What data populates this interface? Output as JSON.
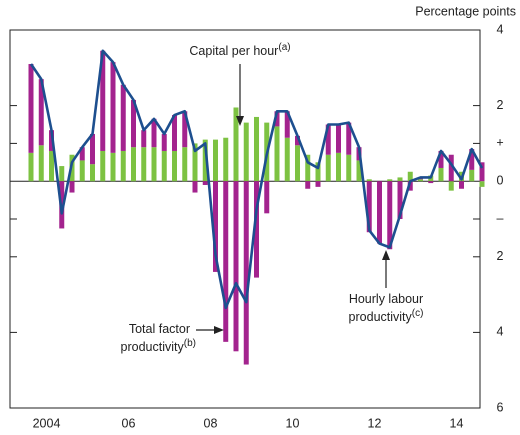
{
  "chart_data": {
    "type": "bar",
    "unit_label": "Percentage points",
    "categories": [
      null,
      null,
      "2004",
      null,
      null,
      null,
      null,
      null,
      null,
      null,
      "06",
      null,
      null,
      null,
      null,
      null,
      null,
      null,
      "08",
      null,
      null,
      null,
      null,
      null,
      null,
      null,
      "10",
      null,
      null,
      null,
      null,
      null,
      null,
      null,
      "12",
      null,
      null,
      null,
      null,
      null,
      null,
      null,
      "14",
      null,
      null
    ],
    "series": [
      {
        "name": "Capital per hour",
        "type": "bar",
        "color": "#7dc242",
        "values": [
          0.75,
          0.95,
          0.8,
          0.4,
          0.7,
          0.55,
          0.45,
          0.8,
          0.75,
          0.8,
          0.9,
          0.9,
          0.9,
          0.8,
          0.8,
          0.9,
          1.0,
          1.1,
          1.1,
          1.15,
          1.95,
          1.55,
          1.7,
          1.55,
          1.45,
          1.15,
          0.95,
          0.7,
          0.5,
          0.7,
          0.75,
          0.7,
          0.55,
          0.05,
          0,
          0.05,
          0.1,
          0.25,
          0.05,
          0.15,
          0.35,
          -0.25,
          0.25,
          0.3,
          -0.15
        ]
      },
      {
        "name": "Total factor productivity",
        "type": "bar",
        "color": "#a3238e",
        "values": [
          2.35,
          1.75,
          0.55,
          -1.25,
          -0.3,
          0.35,
          0.8,
          2.65,
          2.4,
          1.75,
          1.25,
          0.45,
          0.75,
          0.45,
          0.95,
          0.95,
          -0.3,
          -0.1,
          -2.4,
          -4.25,
          -4.5,
          -4.85,
          -2.55,
          -0.85,
          0.4,
          0.7,
          0.25,
          -0.2,
          -0.15,
          0.8,
          0.75,
          0.85,
          0.35,
          -1.35,
          -1.65,
          -1.8,
          -1.0,
          -0.25,
          0.05,
          -0.05,
          0.45,
          0.7,
          -0.2,
          0.55,
          0.5
        ]
      },
      {
        "name": "Hourly labour productivity",
        "type": "line",
        "color": "#1d4f8f",
        "values": [
          3.1,
          2.7,
          1.35,
          -0.85,
          0.5,
          0.9,
          1.25,
          3.45,
          3.15,
          2.55,
          2.15,
          1.35,
          1.65,
          1.25,
          1.75,
          1.85,
          0.8,
          1.0,
          -1.95,
          -3.35,
          -2.7,
          -3.2,
          -0.75,
          0.7,
          1.85,
          1.85,
          1.2,
          0.5,
          0.35,
          1.5,
          1.5,
          1.55,
          0.9,
          -1.3,
          -1.65,
          -1.75,
          -0.9,
          0.0,
          0.1,
          0.1,
          0.8,
          0.45,
          0.05,
          0.85,
          0.35
        ]
      }
    ],
    "annotations": [
      {
        "text": [
          "Capital per hour"
        ],
        "note": "(a)"
      },
      {
        "text": [
          "Total factor",
          "productivity"
        ],
        "note": "(b)"
      },
      {
        "text": [
          "Hourly labour",
          "productivity"
        ],
        "note": "(c)"
      }
    ],
    "ylim": [
      -6,
      4
    ],
    "yticks": [
      {
        "value": -6,
        "label": "6"
      },
      {
        "value": -4,
        "label": "4"
      },
      {
        "value": -2,
        "label": "2"
      },
      {
        "value": -1,
        "label": "–"
      },
      0,
      {
        "value": 1,
        "label": "+"
      },
      2,
      4
    ]
  }
}
